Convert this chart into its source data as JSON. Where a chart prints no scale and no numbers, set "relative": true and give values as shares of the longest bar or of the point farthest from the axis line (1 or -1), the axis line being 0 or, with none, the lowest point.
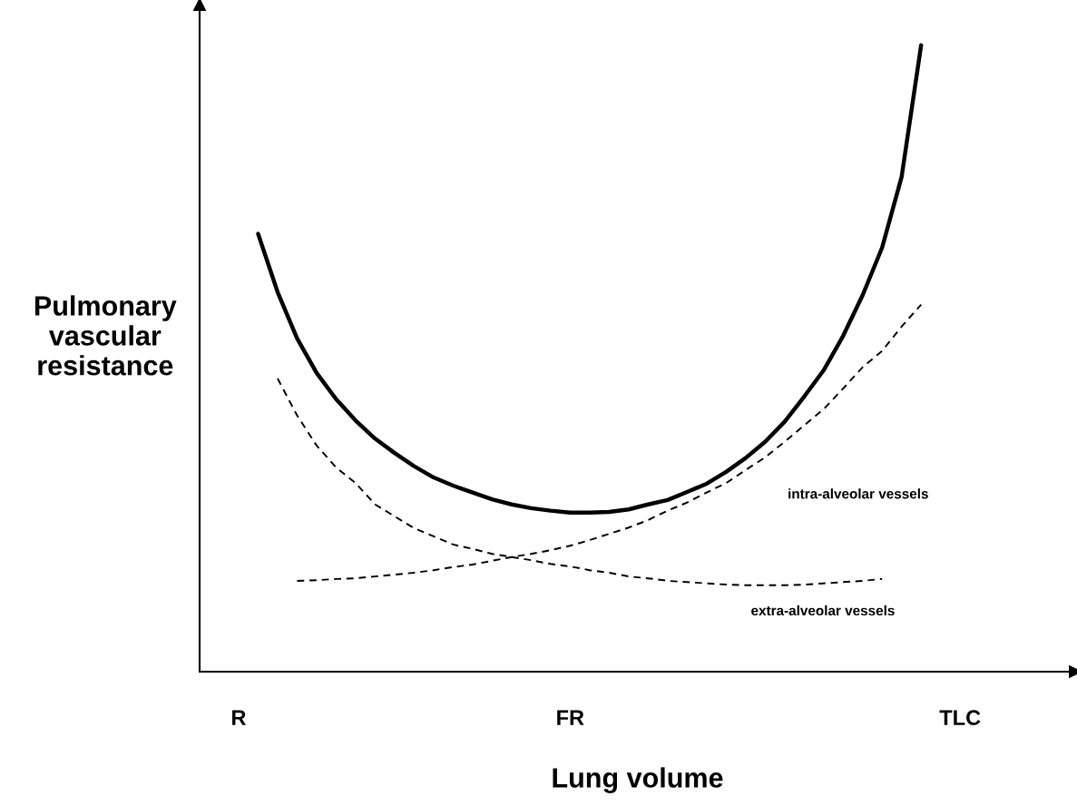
{
  "chart_data": {
    "type": "line",
    "relative": true,
    "xlabel": "Lung volume",
    "ylabel": "Pulmonary\nvascular\nresistance",
    "categories": [
      "R",
      null,
      null,
      null,
      null,
      null,
      null,
      null,
      null,
      null,
      null,
      null,
      null,
      null,
      null,
      null,
      null,
      "FR",
      null,
      null,
      null,
      null,
      null,
      null,
      null,
      null,
      null,
      null,
      null,
      null,
      null,
      null,
      null,
      null,
      null,
      null,
      null,
      "TLC"
    ],
    "grid": false,
    "legend": false,
    "marker": "none",
    "series": [
      {
        "color": "#000000",
        "line_style": "solid",
        "values": [
          null,
          0.699,
          0.606,
          0.532,
          0.477,
          0.435,
          0.401,
          0.372,
          0.349,
          0.328,
          0.31,
          0.297,
          0.286,
          0.275,
          0.267,
          0.261,
          0.257,
          0.254,
          0.254,
          0.255,
          0.259,
          0.267,
          0.274,
          0.287,
          0.3,
          0.319,
          0.341,
          0.367,
          0.399,
          0.439,
          0.481,
          0.536,
          0.601,
          0.677,
          0.79,
          1.0,
          null,
          null
        ]
      },
      {
        "name": "intra-alveolar vessels",
        "color": "#000000",
        "line_style": "dashed",
        "values": [
          null,
          null,
          null,
          0.145,
          0.146,
          0.148,
          0.149,
          0.152,
          0.155,
          0.158,
          0.162,
          0.167,
          0.171,
          0.177,
          0.183,
          0.188,
          0.194,
          0.201,
          0.21,
          0.22,
          0.23,
          0.242,
          0.257,
          0.27,
          0.286,
          0.301,
          0.322,
          0.342,
          0.367,
          0.393,
          0.419,
          0.452,
          0.486,
          0.512,
          0.551,
          0.586,
          null,
          null
        ]
      },
      {
        "name": "extra-alveolar vessels",
        "color": "#000000",
        "line_style": "dashed",
        "values": [
          null,
          null,
          0.468,
          0.409,
          0.361,
          0.326,
          0.301,
          0.267,
          0.248,
          0.229,
          0.216,
          0.203,
          0.196,
          0.188,
          0.183,
          0.178,
          0.172,
          0.168,
          0.162,
          0.158,
          0.152,
          0.149,
          0.145,
          0.143,
          0.141,
          0.139,
          0.138,
          0.138,
          0.138,
          0.139,
          0.141,
          0.143,
          0.145,
          0.148,
          null,
          null,
          null,
          null
        ]
      }
    ]
  }
}
